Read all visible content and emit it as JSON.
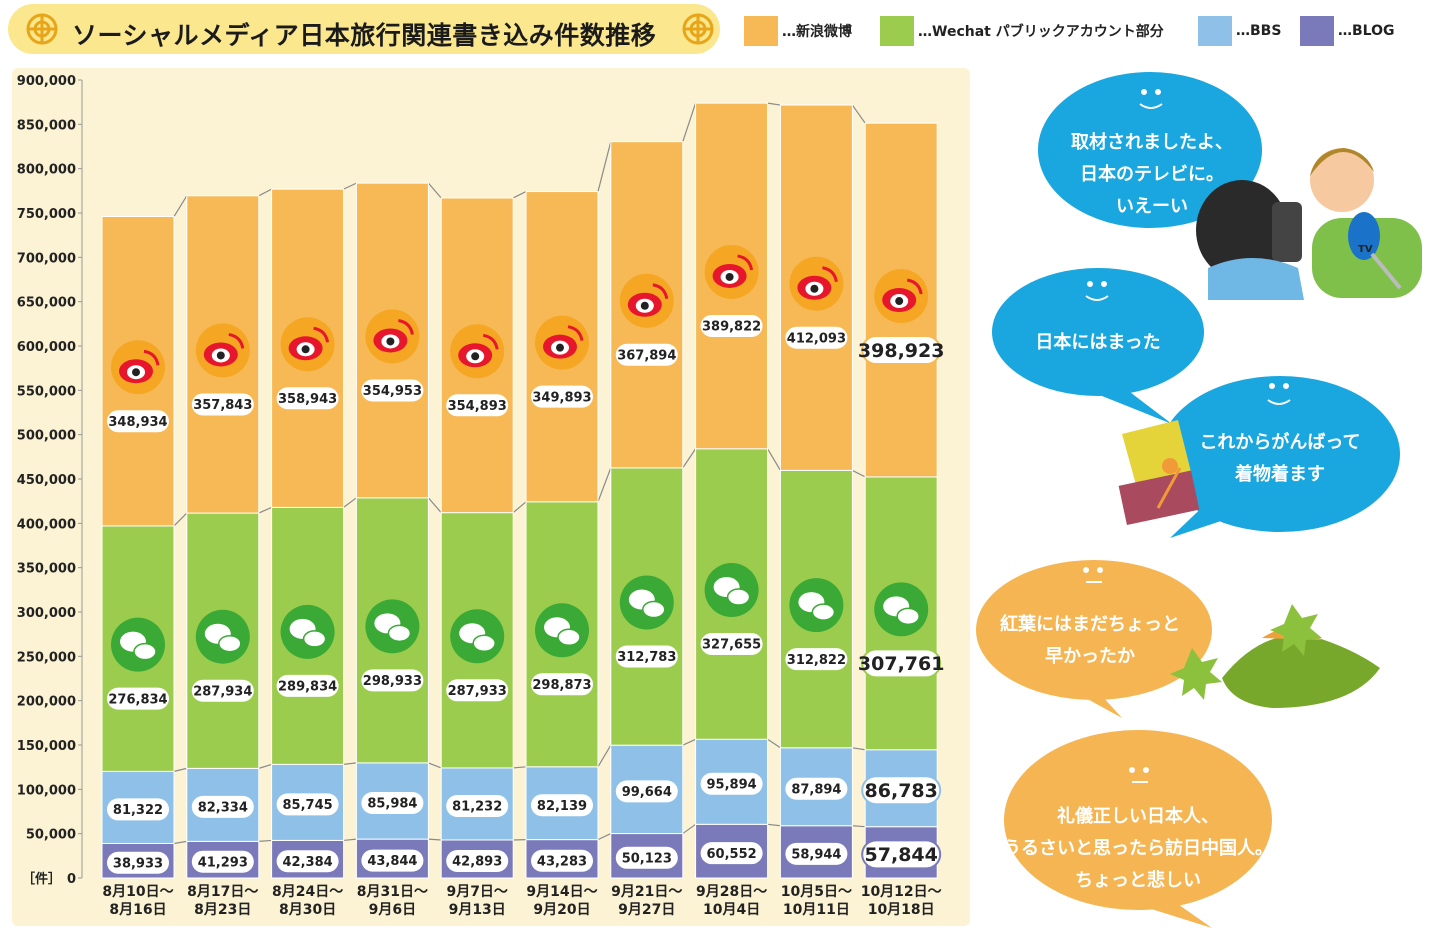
{
  "title": "ソーシャルメディア日本旅行関連書き込み件数推移",
  "legend": [
    {
      "label": "…新浪微博",
      "color": "#f7b955"
    },
    {
      "label": "…Wechat パブリックアカウント部分",
      "color": "#9ccc4e"
    },
    {
      "label": "…BBS",
      "color": "#8fc0e7"
    },
    {
      "label": "…BLOG",
      "color": "#7a79b9"
    }
  ],
  "chart_data": {
    "type": "bar",
    "stacked": true,
    "unit_label": "［件］",
    "ylim": [
      0,
      900000
    ],
    "y_ticks": [
      "0",
      "50,000",
      "100,000",
      "150,000",
      "200,000",
      "250,000",
      "300,000",
      "350,000",
      "400,000",
      "450,000",
      "500,000",
      "550,000",
      "600,000",
      "650,000",
      "700,000",
      "750,000",
      "800,000",
      "850,000",
      "900,000"
    ],
    "categories": [
      [
        "8月10日～",
        "8月16日"
      ],
      [
        "8月17日～",
        "8月23日"
      ],
      [
        "8月24日～",
        "8月30日"
      ],
      [
        "8月31日～",
        "9月6日"
      ],
      [
        "9月7日～",
        "9月13日"
      ],
      [
        "9月14日～",
        "9月20日"
      ],
      [
        "9月21日～",
        "9月27日"
      ],
      [
        "9月28日～",
        "10月4日"
      ],
      [
        "10月5日～",
        "10月11日"
      ],
      [
        "10月12日～",
        "10月18日"
      ]
    ],
    "series": [
      {
        "name": "BLOG",
        "color": "#7a79b9",
        "values": [
          38933,
          41293,
          42384,
          43844,
          42893,
          43283,
          50123,
          60552,
          58944,
          57844
        ],
        "labels": [
          "38,933",
          "41,293",
          "42,384",
          "43,844",
          "42,893",
          "43,283",
          "50,123",
          "60,552",
          "58,944",
          "57,844"
        ]
      },
      {
        "name": "BBS",
        "color": "#8fc0e7",
        "values": [
          81322,
          82334,
          85745,
          85984,
          81232,
          82139,
          99664,
          95894,
          87894,
          86783
        ],
        "labels": [
          "81,322",
          "82,334",
          "85,745",
          "85,984",
          "81,232",
          "82,139",
          "99,664",
          "95,894",
          "87,894",
          "86,783"
        ]
      },
      {
        "name": "Wechat パブリックアカウント部分",
        "color": "#9ccc4e",
        "values": [
          276834,
          287934,
          289834,
          298933,
          287933,
          298873,
          312783,
          327655,
          312822,
          307761
        ],
        "labels": [
          "276,834",
          "287,934",
          "289,834",
          "298,933",
          "287,933",
          "298,873",
          "312,783",
          "327,655",
          "312,822",
          "307,761"
        ]
      },
      {
        "name": "新浪微博",
        "color": "#f7b955",
        "values": [
          348934,
          357843,
          358943,
          354953,
          354893,
          349893,
          367894,
          389822,
          412093,
          398923
        ],
        "labels": [
          "348,934",
          "357,843",
          "358,943",
          "354,953",
          "354,893",
          "349,893",
          "367,894",
          "389,822",
          "412,093",
          "398,923"
        ]
      }
    ]
  },
  "bubbles": [
    {
      "lines": [
        "取材されましたよ、",
        "日本のテレビに。",
        "いえーい"
      ],
      "color": "#1aa6de"
    },
    {
      "lines": [
        "日本にはまった"
      ],
      "color": "#1aa6de"
    },
    {
      "lines": [
        "これからがんばって",
        "着物着ます"
      ],
      "color": "#1aa6de"
    },
    {
      "lines": [
        "紅葉にはまだちょっと",
        "早かったか"
      ],
      "color": "#f5b552"
    },
    {
      "lines": [
        "礼儀正しい日本人、",
        "うるさいと思ったら訪日中国人。",
        "ちょっと悲しい"
      ],
      "color": "#f5b552"
    }
  ],
  "tv_label": "TV"
}
